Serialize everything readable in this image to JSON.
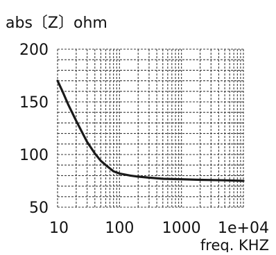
{
  "chart_data": {
    "type": "line",
    "title": "abs〔Z〕ohm",
    "xlabel": "freq.  KHZ",
    "ylabel": "",
    "x_scale": "log",
    "xlim": [
      10,
      10000
    ],
    "ylim": [
      50,
      200
    ],
    "x_ticks": [
      10,
      100,
      1000,
      10000
    ],
    "x_tick_labels": [
      "10",
      "100",
      "1000",
      "1e+04"
    ],
    "y_ticks": [
      50,
      100,
      150,
      200
    ],
    "y_tick_labels": [
      "50",
      "100",
      "150",
      "200"
    ],
    "grid": true,
    "grid_style": "dotted",
    "legend": "none",
    "series": [
      {
        "color": "#1a1a1a",
        "x": [
          10,
          12,
          15,
          20,
          25,
          30,
          40,
          50,
          60,
          80,
          100,
          150,
          200,
          300,
          500,
          1000,
          2000,
          5000,
          10000
        ],
        "y": [
          170,
          160,
          147,
          132,
          121,
          112,
          101,
          94,
          90,
          84,
          82,
          80,
          79,
          78,
          77,
          76.5,
          76,
          75.5,
          75
        ]
      }
    ]
  }
}
